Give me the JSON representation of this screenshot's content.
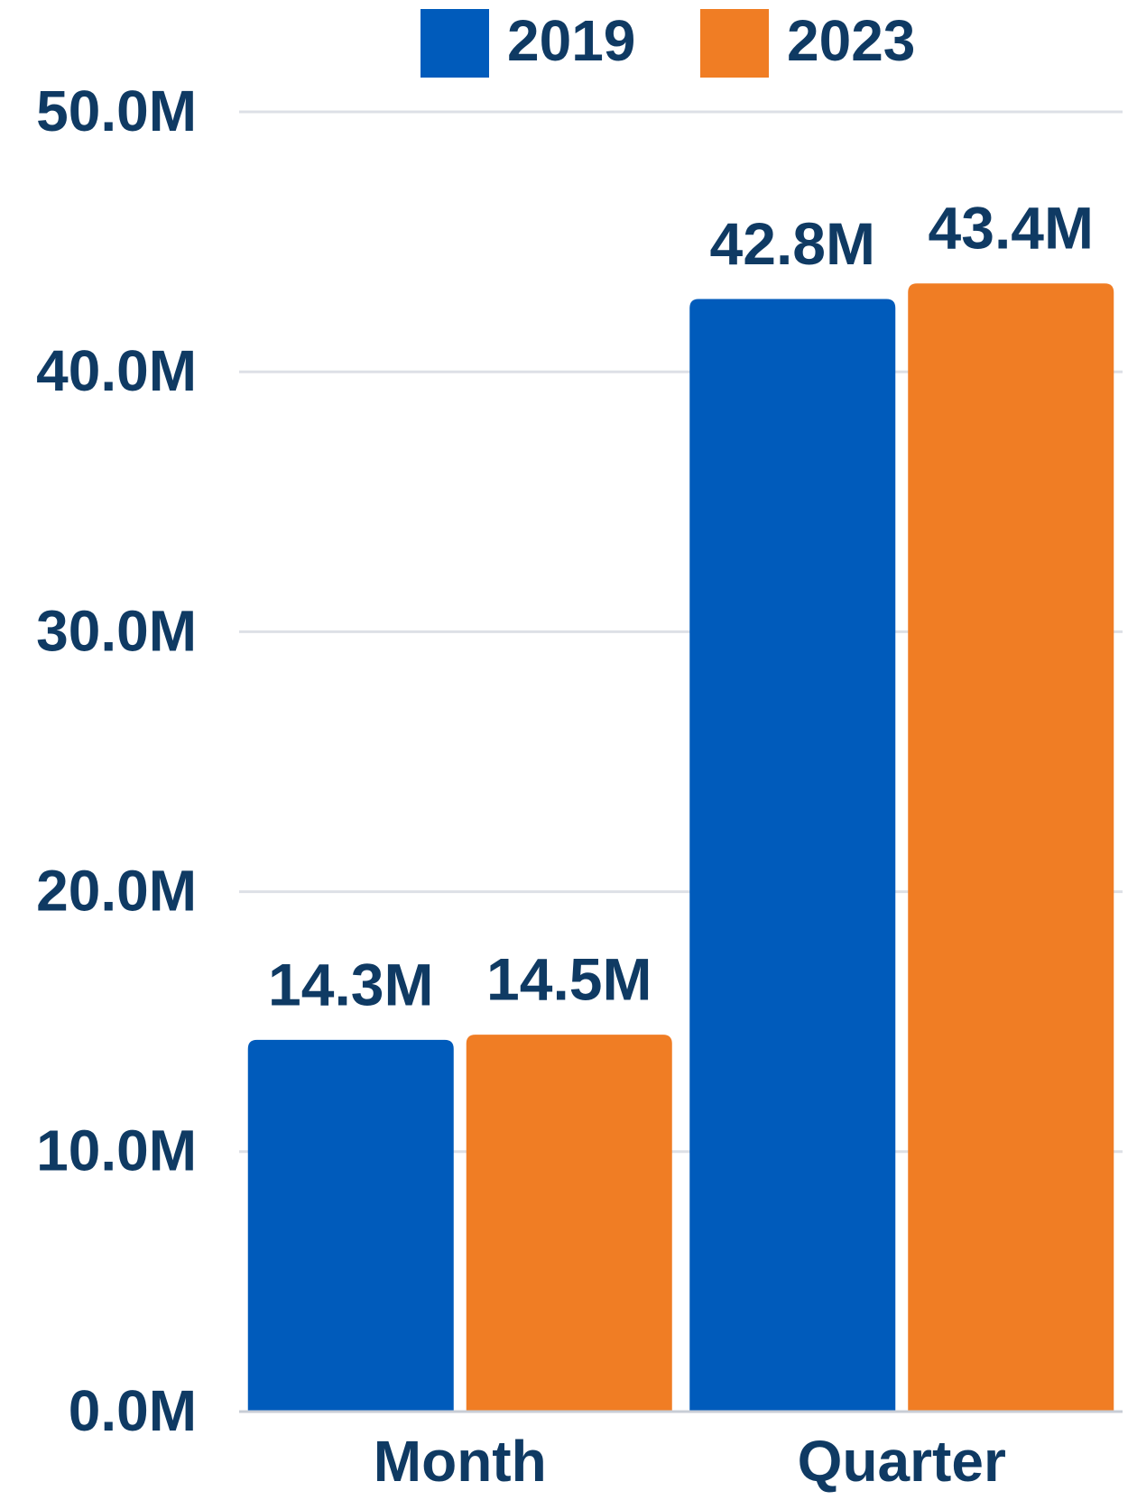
{
  "chart_data": {
    "type": "bar",
    "categories": [
      "Month",
      "Quarter"
    ],
    "series": [
      {
        "name": "2019",
        "color": "#005bbb",
        "values": [
          14300000,
          42800000
        ],
        "value_labels": [
          "14.3M",
          "42.8M"
        ]
      },
      {
        "name": "2023",
        "color": "#f07d24",
        "values": [
          14500000,
          43400000
        ],
        "value_labels": [
          "14.5M",
          "43.4M"
        ]
      }
    ],
    "ylim": [
      0,
      50000000
    ],
    "yticks": [
      {
        "value": 0,
        "label": "0.0M"
      },
      {
        "value": 10000000,
        "label": "10.0M"
      },
      {
        "value": 20000000,
        "label": "20.0M"
      },
      {
        "value": 30000000,
        "label": "30.0M"
      },
      {
        "value": 40000000,
        "label": "40.0M"
      },
      {
        "value": 50000000,
        "label": "50.0M"
      }
    ],
    "grid": true,
    "legend": "top"
  }
}
